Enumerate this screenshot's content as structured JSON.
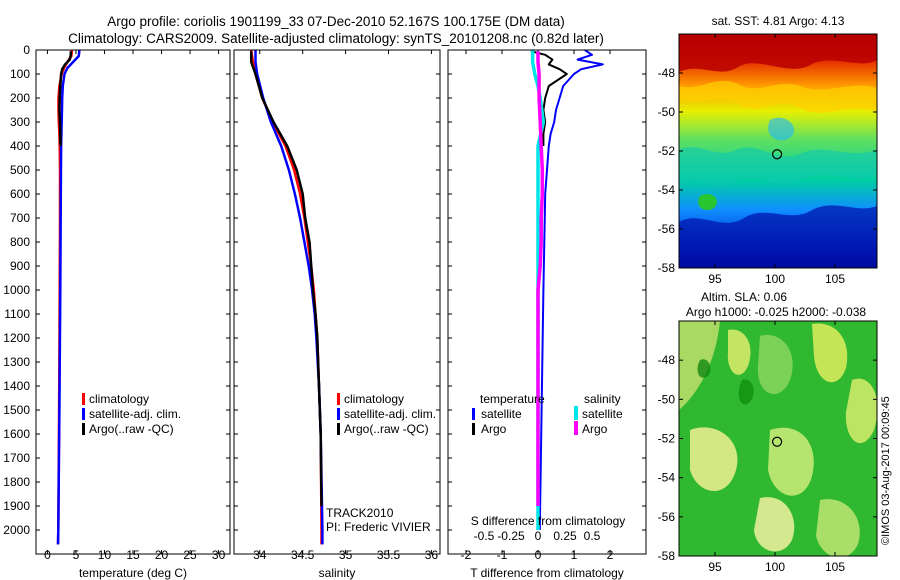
{
  "header": {
    "title_line1": "Argo profile: coriolis 1901199_33 07-Dec-2010 52.167S 100.175E (DM data)",
    "title_line2": "Climatology: CARS2009. Satellite-adjusted climatology: synTS_20101208.nc (0.82d later)"
  },
  "colors": {
    "climatology": "#ff0000",
    "satellite_adj_clim": "#0000ff",
    "argo": "#000000",
    "t_satellite": "#0000ff",
    "t_argo": "#000000",
    "s_satellite": "#00e5e5",
    "s_argo": "#ff00ff"
  },
  "right_text": {
    "map1_title": "sat. SST: 4.81  Argo: 4.13",
    "map2_title1": "Altim. SLA: 0.06",
    "map2_title2": "Argo h1000: -0.025 h2000: -0.038",
    "credit": "©IMOS 03-Aug-2017 00:09:45"
  },
  "annotations": {
    "track": "TRACK2010",
    "pi": "PI: Frederic VIVIER"
  },
  "chart_data": [
    {
      "type": "line",
      "panel": "temperature",
      "xlabel": "temperature (deg C)",
      "ylabel": "",
      "xlim": [
        -2,
        32
      ],
      "ylim": [
        2100,
        0
      ],
      "xticks": [
        0,
        5,
        10,
        15,
        20,
        25,
        30
      ],
      "yticks": [
        0,
        100,
        200,
        300,
        400,
        500,
        600,
        700,
        800,
        900,
        1000,
        1100,
        1200,
        1300,
        1400,
        1500,
        1600,
        1700,
        1800,
        1900,
        2000
      ],
      "legend_position": "lower-center",
      "legend": [
        "climatology",
        "satellite-adj. clim.",
        "Argo(..raw -QC)"
      ],
      "series": [
        {
          "name": "climatology",
          "depth": [
            0,
            25,
            50,
            75,
            100,
            150,
            200,
            250,
            300,
            350,
            400,
            500,
            700,
            1000,
            1500,
            2000,
            2060
          ],
          "values": [
            4.3,
            4.2,
            3.5,
            2.9,
            2.5,
            2.1,
            1.95,
            1.95,
            2.0,
            2.1,
            2.15,
            2.2,
            2.2,
            2.15,
            2.05,
            1.9,
            1.85
          ]
        },
        {
          "name": "satellite-adj. clim.",
          "depth": [
            0,
            25,
            50,
            75,
            100,
            150,
            200,
            300,
            400,
            600,
            1000,
            1500,
            2000,
            2060
          ],
          "values": [
            5.6,
            5.5,
            4.5,
            3.5,
            3.0,
            2.7,
            2.6,
            2.5,
            2.4,
            2.35,
            2.25,
            2.1,
            1.9,
            1.85
          ]
        },
        {
          "name": "Argo(..raw -QC)",
          "depth": [
            5,
            20,
            40,
            60,
            80,
            100,
            150,
            200,
            250,
            300,
            350,
            400
          ],
          "values": [
            4.1,
            4.1,
            3.9,
            3.1,
            2.6,
            2.4,
            2.25,
            2.15,
            2.1,
            2.2,
            2.25,
            2.3
          ]
        }
      ]
    },
    {
      "type": "line",
      "panel": "salinity",
      "xlabel": "salinity",
      "ylabel": "",
      "xlim": [
        33.7,
        36.1
      ],
      "ylim": [
        2100,
        0
      ],
      "xticks": [
        34,
        34.5,
        35,
        35.5,
        36
      ],
      "legend_position": "lower-center",
      "legend": [
        "climatology",
        "satellite-adj. clim.",
        "Argo(..raw -QC)"
      ],
      "series": [
        {
          "name": "climatology",
          "depth": [
            0,
            50,
            100,
            200,
            300,
            400,
            500,
            600,
            700,
            800,
            900,
            1000,
            1100,
            1200,
            1400,
            1600,
            2000,
            2060
          ],
          "values": [
            33.9,
            33.92,
            33.95,
            34.03,
            34.15,
            34.3,
            34.4,
            34.47,
            34.52,
            34.56,
            34.6,
            34.63,
            34.65,
            34.67,
            34.69,
            34.71,
            34.72,
            34.72
          ]
        },
        {
          "name": "satellite-adj. clim.",
          "depth": [
            0,
            50,
            100,
            200,
            300,
            400,
            500,
            600,
            700,
            800,
            900,
            1000,
            1100,
            1200,
            1400,
            1600,
            2000,
            2060
          ],
          "values": [
            33.95,
            33.95,
            33.97,
            34.04,
            34.13,
            34.25,
            34.34,
            34.41,
            34.47,
            34.52,
            34.57,
            34.61,
            34.64,
            34.66,
            34.69,
            34.71,
            34.73,
            34.73
          ]
        },
        {
          "name": "Argo(..raw -QC)",
          "depth": [
            5,
            50,
            100,
            200,
            300,
            400,
            500,
            600,
            700,
            800,
            850,
            900,
            1000,
            1100,
            1200,
            1400,
            1600,
            1900
          ],
          "values": [
            33.9,
            33.9,
            33.95,
            34.03,
            34.16,
            34.32,
            34.43,
            34.5,
            34.53,
            34.58,
            34.59,
            34.6,
            34.62,
            34.65,
            34.67,
            34.69,
            34.71,
            34.72
          ]
        }
      ]
    },
    {
      "type": "line",
      "panel": "difference",
      "xlabel": "T difference from climatology",
      "xlabel_top": "S difference from climatology",
      "xlim": [
        -2.5,
        3
      ],
      "ylim": [
        2100,
        0
      ],
      "xticks": [
        -2,
        -1,
        0,
        1,
        2
      ],
      "xticklabels": [
        "-2",
        "-1",
        "0",
        "1",
        "2"
      ],
      "s_ticks": [
        -0.5,
        -0.25,
        0,
        0.25,
        0.5
      ],
      "s_ticklabels": [
        "-0.5",
        "-0.25",
        "0",
        "0.25",
        "0.5"
      ],
      "legend_position": "lower-center",
      "legend_groups": {
        "left": "temperature",
        "right": "salinity"
      },
      "legend": {
        "t_satellite": "satellite",
        "t_argo": "Argo",
        "s_satellite": "satellite",
        "s_argo": "Argo"
      },
      "series": [
        {
          "name": "satellite",
          "depth": [
            0,
            20,
            40,
            60,
            80,
            100,
            150,
            200,
            250,
            300,
            350,
            400,
            600,
            1000,
            1500,
            2000
          ],
          "values": [
            1.3,
            1.5,
            1.1,
            1.8,
            1.2,
            1.0,
            0.7,
            0.6,
            0.5,
            0.45,
            0.35,
            0.3,
            0.2,
            0.15,
            0.1,
            0.05
          ]
        },
        {
          "name": "Argo",
          "depth": [
            5,
            20,
            40,
            60,
            80,
            100,
            150,
            200,
            250,
            300,
            350,
            400
          ],
          "values": [
            -0.2,
            0.2,
            0.4,
            0.3,
            0.6,
            0.8,
            0.3,
            0.2,
            0.15,
            0.2,
            0.15,
            0.15
          ]
        },
        {
          "name": "satellite",
          "depth": [
            0,
            50,
            100,
            150,
            200,
            300,
            400,
            500,
            700,
            1000,
            1500,
            2000
          ],
          "values": [
            -0.05,
            -0.05,
            -0.03,
            0.0,
            0.02,
            0.05,
            0.0,
            0.0,
            0.0,
            0.0,
            0.0,
            0.0
          ]
        },
        {
          "name": "Argo",
          "depth": [
            5,
            50,
            100,
            200,
            300,
            400,
            500,
            600,
            700,
            800,
            900,
            1000,
            1200,
            1500,
            1900
          ],
          "values": [
            0.0,
            0.0,
            0.01,
            0.01,
            0.02,
            0.03,
            0.04,
            0.04,
            0.03,
            0.03,
            0.02,
            0.0,
            0.0,
            0.0,
            0.0
          ]
        }
      ]
    },
    {
      "type": "heatmap",
      "panel": "sat-sst-map",
      "title": "sat. SST: 4.81  Argo: 4.13",
      "xlim": [
        92,
        108.5
      ],
      "ylim": [
        -58,
        -46
      ],
      "xticks": [
        95,
        100,
        105
      ],
      "yticks": [
        -48,
        -50,
        -52,
        -54,
        -56,
        -58
      ],
      "marker": {
        "lon": 100.175,
        "lat": -52.167
      }
    },
    {
      "type": "heatmap",
      "panel": "altimetry-sla-map",
      "title": "Altim. SLA: 0.06",
      "xlim": [
        92,
        108.5
      ],
      "ylim": [
        -58,
        -46
      ],
      "xticks": [
        95,
        100,
        105
      ],
      "yticks": [
        -48,
        -50,
        -52,
        -54,
        -56,
        -58
      ],
      "marker": {
        "lon": 100.175,
        "lat": -52.167
      }
    }
  ]
}
